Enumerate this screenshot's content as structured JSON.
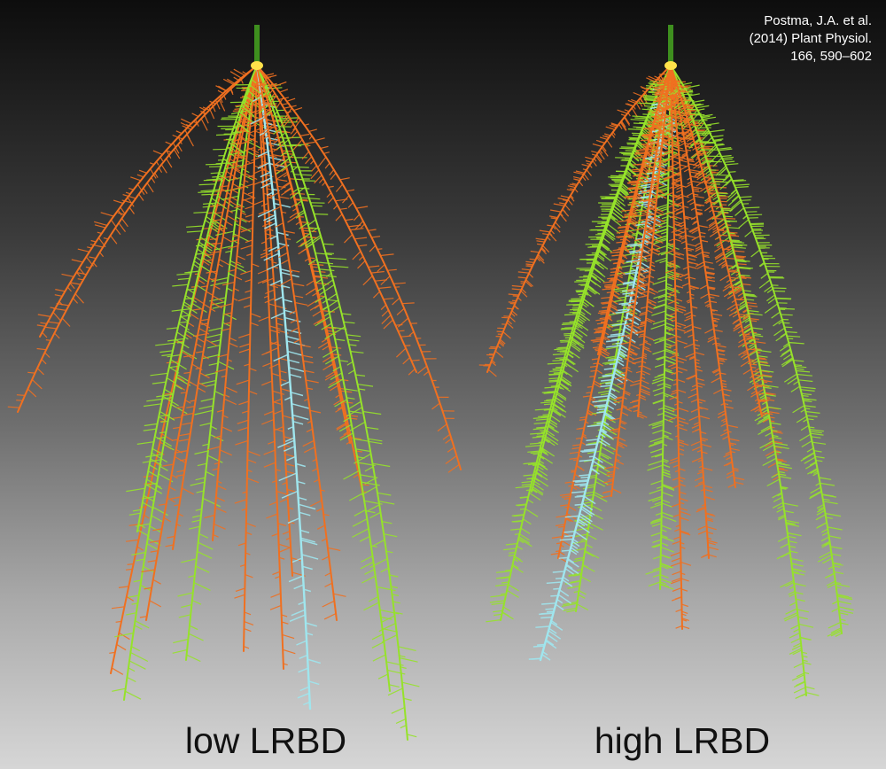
{
  "citation": {
    "line1": "Postma, J.A. et al.",
    "line2": "(2014)  Plant Physiol.",
    "line3": "166, 590–602"
  },
  "panels": [
    {
      "label": "low LRBD",
      "lateral_density": "low"
    },
    {
      "label": "high LRBD",
      "lateral_density": "high"
    }
  ],
  "colors": {
    "orange_roots": "#f07020",
    "green_roots": "#96e22a",
    "cyan_taproot": "#9fe6ee",
    "stem": "#3e8f1e",
    "crown": "#ffe24a"
  }
}
